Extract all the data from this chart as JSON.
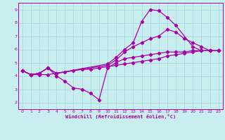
{
  "bg_color": "#c8eef0",
  "grid_color": "#a8d8dc",
  "line_color": "#aa00aa",
  "xlabel": "Windchill (Refroidissement éolien,°C)",
  "xlim": [
    -0.5,
    23.5
  ],
  "ylim": [
    1.5,
    9.5
  ],
  "xticks": [
    0,
    1,
    2,
    3,
    4,
    5,
    6,
    7,
    8,
    9,
    10,
    11,
    12,
    13,
    14,
    15,
    16,
    17,
    18,
    19,
    20,
    21,
    22,
    23
  ],
  "yticks": [
    2,
    3,
    4,
    5,
    6,
    7,
    8,
    9
  ],
  "curve_dip_x": [
    0,
    1,
    2,
    3,
    4,
    5,
    6,
    7,
    8,
    9,
    10,
    11,
    12,
    13,
    14,
    15,
    16,
    17,
    18,
    19,
    20,
    21,
    22,
    23
  ],
  "curve_dip_y": [
    4.4,
    4.1,
    4.2,
    4.6,
    4.0,
    3.6,
    3.1,
    3.0,
    2.7,
    2.2,
    4.6,
    5.0,
    5.3,
    5.4,
    5.5,
    5.6,
    5.7,
    5.8,
    5.8,
    5.8,
    5.9,
    5.9,
    5.9,
    5.9
  ],
  "curve_lin_x": [
    0,
    1,
    2,
    3,
    4,
    5,
    6,
    7,
    8,
    9,
    10,
    11,
    12,
    13,
    14,
    15,
    16,
    17,
    18,
    19,
    20,
    21,
    22,
    23
  ],
  "curve_lin_y": [
    4.4,
    4.1,
    4.1,
    4.1,
    4.2,
    4.3,
    4.4,
    4.5,
    4.5,
    4.6,
    4.7,
    4.8,
    4.9,
    5.0,
    5.1,
    5.2,
    5.3,
    5.5,
    5.6,
    5.7,
    5.8,
    5.9,
    5.9,
    5.9
  ],
  "curve_big_x": [
    0,
    1,
    2,
    3,
    4,
    10,
    11,
    12,
    13,
    14,
    15,
    16,
    17,
    18,
    20,
    21,
    22,
    23
  ],
  "curve_big_y": [
    4.4,
    4.1,
    4.2,
    4.6,
    4.2,
    4.9,
    5.4,
    6.0,
    6.5,
    8.1,
    9.0,
    8.9,
    8.4,
    7.8,
    6.2,
    5.9,
    5.9,
    5.9
  ],
  "curve_med_x": [
    0,
    1,
    2,
    3,
    4,
    10,
    11,
    12,
    13,
    14,
    15,
    16,
    17,
    18,
    19,
    20,
    21,
    22,
    23
  ],
  "curve_med_y": [
    4.4,
    4.1,
    4.2,
    4.6,
    4.2,
    4.8,
    5.2,
    5.8,
    6.2,
    6.5,
    6.8,
    7.0,
    7.5,
    7.3,
    6.8,
    6.5,
    6.2,
    5.9,
    5.9
  ]
}
